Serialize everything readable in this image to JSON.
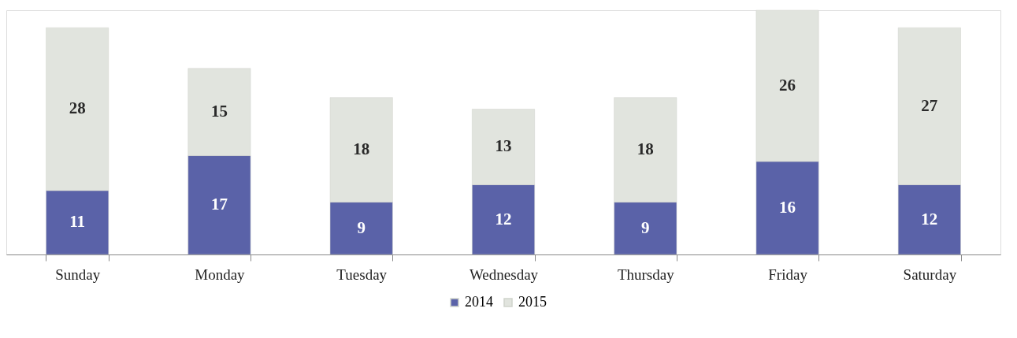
{
  "chart_data": {
    "type": "bar",
    "stacked": true,
    "data_labels": true,
    "legend": "bottom",
    "grid": false,
    "categories": [
      "Sunday",
      "Monday",
      "Tuesday",
      "Wednesday",
      "Thursday",
      "Friday",
      "Saturday"
    ],
    "series": [
      {
        "name": "2014",
        "color": "#5a62a8",
        "values": [
          11,
          17,
          9,
          12,
          9,
          16,
          12
        ]
      },
      {
        "name": "2015",
        "color": "#e1e4de",
        "values": [
          28,
          15,
          18,
          13,
          18,
          26,
          27
        ]
      }
    ]
  }
}
